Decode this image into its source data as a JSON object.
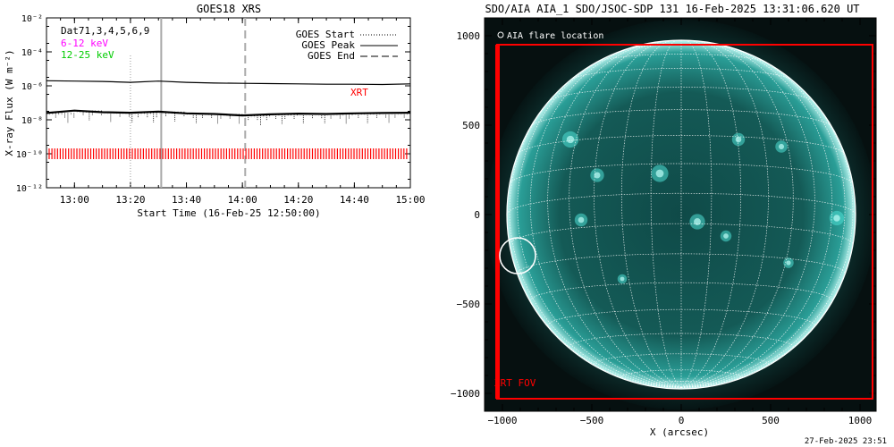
{
  "left_panel": {
    "title": "GOES18 XRS",
    "ylabel": "X-ray Flux (W m⁻²)",
    "xlabel": "Start Time (16-Feb-25 12:50:00)",
    "channels_label": "Dat71,3,4,5,6,9",
    "band_low": "6-12 keV",
    "band_high": "12-25 keV",
    "xrt_label": "XRT",
    "legend": {
      "start": "GOES Start",
      "peak": "GOES Peak",
      "end": "GOES End"
    },
    "colors": {
      "flux": "#000000",
      "band_low": "#ff00ff",
      "band_high": "#00cc00",
      "xrt": "#ff0000",
      "markers": "#aaaaaa"
    }
  },
  "right_panel": {
    "title": "SDO/AIA AIA_1 SDO/JSOC-SDP 131 16-Feb-2025 13:31:06.620 UT",
    "legend_text": "AIA flare location",
    "fov_label": "XRT FOV",
    "xlabel": "X (arcsec)",
    "colors": {
      "fov": "#ff0000",
      "disk": "#30c8c0",
      "grid": "#ffffff"
    }
  },
  "footer_timestamp": "27-Feb-2025 23:51",
  "chart_data": [
    {
      "type": "line",
      "title": "GOES18 XRS",
      "xlabel": "Start Time (16-Feb-25 12:50:00)",
      "ylabel": "X-ray Flux (W m⁻²)",
      "yscale": "log",
      "x_ticks": [
        "13:00",
        "13:20",
        "13:40",
        "14:00",
        "14:20",
        "14:40",
        "15:00"
      ],
      "y_ticks": [
        "10⁻¹²",
        "10⁻¹⁰",
        "10⁻⁸",
        "10⁻⁶",
        "10⁻⁴",
        "10⁻²"
      ],
      "xlim": [
        "12:50",
        "15:00"
      ],
      "ylim": [
        1e-12,
        0.01
      ],
      "series": [
        {
          "name": "GOES Peak",
          "x": [
            "12:50",
            "13:00",
            "13:10",
            "13:20",
            "13:30",
            "13:40",
            "13:50",
            "14:00",
            "14:10",
            "14:20",
            "14:30",
            "14:40",
            "14:50",
            "15:00"
          ],
          "values": [
            2e-06,
            1.9e-06,
            1.8e-06,
            1.6e-06,
            1.9e-06,
            1.6e-06,
            1.45e-06,
            1.4e-06,
            1.35e-06,
            1.3e-06,
            1.25e-06,
            1.25e-06,
            1.2e-06,
            1.3e-06
          ]
        },
        {
          "x": [
            "12:50",
            "13:00",
            "13:10",
            "13:20",
            "13:30",
            "13:40",
            "13:50",
            "14:00",
            "14:10",
            "14:20",
            "14:30",
            "14:40",
            "14:50",
            "15:00"
          ],
          "values": [
            2.5e-08,
            3.5e-08,
            2.8e-08,
            2.6e-08,
            3e-08,
            2.4e-08,
            2.2e-08,
            1.8e-08,
            2.1e-08,
            2.3e-08,
            2.2e-08,
            2.4e-08,
            2.5e-08,
            2.6e-08
          ]
        }
      ],
      "markers": {
        "start": "13:20",
        "peak": "13:31",
        "end": "14:01"
      },
      "xrt_observations_flux": 1e-10
    },
    {
      "type": "scatter",
      "title": "SDO/AIA AIA_1 SDO/JSOC-SDP 131 16-Feb-2025 13:31:06.620 UT",
      "xlabel": "X (arcsec)",
      "x_ticks": [
        -1000,
        -500,
        0,
        500,
        1000
      ],
      "y_ticks": [
        -1000,
        -500,
        0,
        500,
        1000
      ],
      "xlim": [
        -1000,
        1000
      ],
      "ylim": [
        -1000,
        1000
      ],
      "solar_radius_arcsec": 975,
      "flare_location": {
        "x": -915,
        "y": -230
      },
      "xrt_fov": {
        "xmin": -1030,
        "xmax": 1070,
        "ymin": -1030,
        "ymax": 950
      }
    }
  ]
}
